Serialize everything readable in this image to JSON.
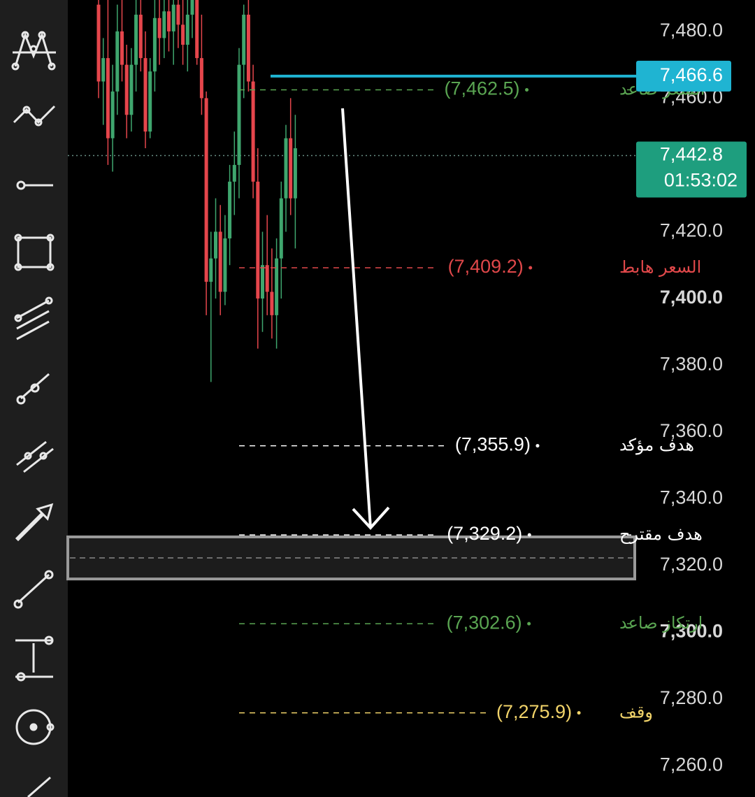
{
  "chart_data": {
    "type": "candlestick",
    "ylim": [
      7250.7,
      7489.4
    ],
    "yticks": [
      {
        "value": 7480,
        "label": "7,480.0"
      },
      {
        "value": 7460,
        "label": "7,460.0"
      },
      {
        "value": 7420,
        "label": "7,420.0"
      },
      {
        "value": 7400,
        "label": "7,400.0"
      },
      {
        "value": 7380,
        "label": "7,380.0"
      },
      {
        "value": 7360,
        "label": "7,360.0"
      },
      {
        "value": 7340,
        "label": "7,340.0"
      },
      {
        "value": 7320,
        "label": "7,320.0"
      },
      {
        "value": 7300,
        "label": "7,300.0"
      },
      {
        "value": 7280,
        "label": "7,280.0"
      },
      {
        "value": 7260,
        "label": "7,260.0"
      }
    ],
    "up_color": "#3fa66e",
    "down_color": "#e5464c",
    "open": [
      7488,
      7465,
      7472,
      7448,
      7462,
      7480,
      7470,
      7455,
      7470,
      7485,
      7472,
      7450,
      7468,
      7484,
      7478,
      7486,
      7480,
      7488,
      7482,
      7476,
      7485,
      7490,
      7472,
      7460,
      7405,
      7412,
      7420,
      7402,
      7418,
      7435,
      7440,
      7470,
      7485,
      7465,
      7435,
      7400,
      7410,
      7402,
      7395,
      7412,
      7430,
      7448,
      7430
    ],
    "high": [
      7492,
      7478,
      7490,
      7470,
      7488,
      7492,
      7476,
      7475,
      7490,
      7492,
      7480,
      7472,
      7490,
      7492,
      7490,
      7492,
      7492,
      7492,
      7490,
      7492,
      7492,
      7492,
      7485,
      7462,
      7420,
      7430,
      7428,
      7425,
      7440,
      7450,
      7475,
      7488,
      7490,
      7470,
      7445,
      7420,
      7425,
      7415,
      7418,
      7435,
      7452,
      7460,
      7455
    ],
    "low": [
      7460,
      7452,
      7440,
      7438,
      7455,
      7465,
      7448,
      7450,
      7462,
      7468,
      7445,
      7448,
      7462,
      7470,
      7472,
      7474,
      7470,
      7475,
      7470,
      7468,
      7478,
      7470,
      7455,
      7395,
      7375,
      7400,
      7395,
      7398,
      7410,
      7425,
      7430,
      7460,
      7462,
      7430,
      7385,
      7390,
      7395,
      7388,
      7385,
      7400,
      7420,
      7425,
      7415
    ],
    "close": [
      7465,
      7472,
      7448,
      7462,
      7480,
      7470,
      7455,
      7470,
      7485,
      7472,
      7450,
      7468,
      7484,
      7478,
      7486,
      7480,
      7488,
      7482,
      7476,
      7485,
      7490,
      7472,
      7460,
      7405,
      7412,
      7420,
      7402,
      7418,
      7435,
      7440,
      7470,
      7485,
      7465,
      7435,
      7400,
      7410,
      7402,
      7395,
      7412,
      7430,
      7448,
      7430,
      7445
    ],
    "levels": [
      {
        "name": "السعر صاعد",
        "value": 7462.5,
        "value_label": "(7,462.5)",
        "color": "#5aa552"
      },
      {
        "name": "السعر هابط",
        "value": 7409.2,
        "value_label": "(7,409.2)",
        "color": "#e0484a"
      },
      {
        "name": "هدف مؤكد",
        "value": 7355.9,
        "value_label": "(7,355.9)",
        "color": "#ffffff"
      },
      {
        "name": "هدف مقترح",
        "value": 7329.2,
        "value_label": "(7,329.2)",
        "color": "#ffffff"
      },
      {
        "name": "ارتكاز صاعد",
        "value": 7302.6,
        "value_label": "(7,302.6)",
        "color": "#5aa552"
      },
      {
        "name": "وقف",
        "value": 7275.9,
        "value_label": "(7,275.9)",
        "color": "#f2d46a"
      }
    ],
    "zone": [
      7316.0,
      7328.6
    ],
    "marker_price": {
      "value": 7466.6,
      "value_label": "7,466.6",
      "color": "#1fb4d2"
    },
    "last_price": {
      "value": 7442.8,
      "value_label": "7,442.8",
      "countdown": "01:53:02",
      "color": "#1e9e7e"
    }
  }
}
